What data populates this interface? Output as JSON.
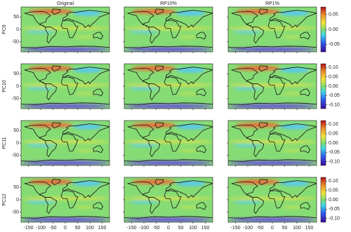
{
  "columns": [
    "Original",
    "RP10%",
    "RP1%"
  ],
  "rows": [
    {
      "label": "PC9",
      "clim": [
        -0.075,
        0.075
      ],
      "cticks": [
        0.05,
        {
          "value": 0,
          "label": "0.00"
        },
        -0.05
      ]
    },
    {
      "label": "PC10",
      "clim": [
        -0.12,
        0.12
      ],
      "cticks": [
        {
          "value": 0.1,
          "label": "0.10"
        },
        0.05,
        {
          "value": 0,
          "label": "0.00"
        },
        -0.05,
        {
          "value": -0.1,
          "label": "-0.10"
        }
      ]
    },
    {
      "label": "PC11",
      "clim": [
        -0.12,
        0.12
      ],
      "cticks": [
        {
          "value": 0.1,
          "label": "0.10"
        },
        0.05,
        {
          "value": 0,
          "label": "0.00"
        },
        -0.05,
        {
          "value": -0.1,
          "label": "-0.10"
        }
      ]
    },
    {
      "label": "PC12",
      "clim": [
        -0.12,
        0.12
      ],
      "cticks": [
        {
          "value": 0.1,
          "label": "0.10"
        },
        0.05,
        {
          "value": 0,
          "label": "0.00"
        },
        -0.05,
        {
          "value": -0.1,
          "label": "-0.10"
        }
      ]
    }
  ],
  "xlim": [
    -180,
    180
  ],
  "ylim": [
    -90,
    90
  ],
  "xticks": [
    -150,
    -100,
    -50,
    0,
    50,
    100,
    150
  ],
  "yticks": [
    50,
    0,
    -50
  ]
}
